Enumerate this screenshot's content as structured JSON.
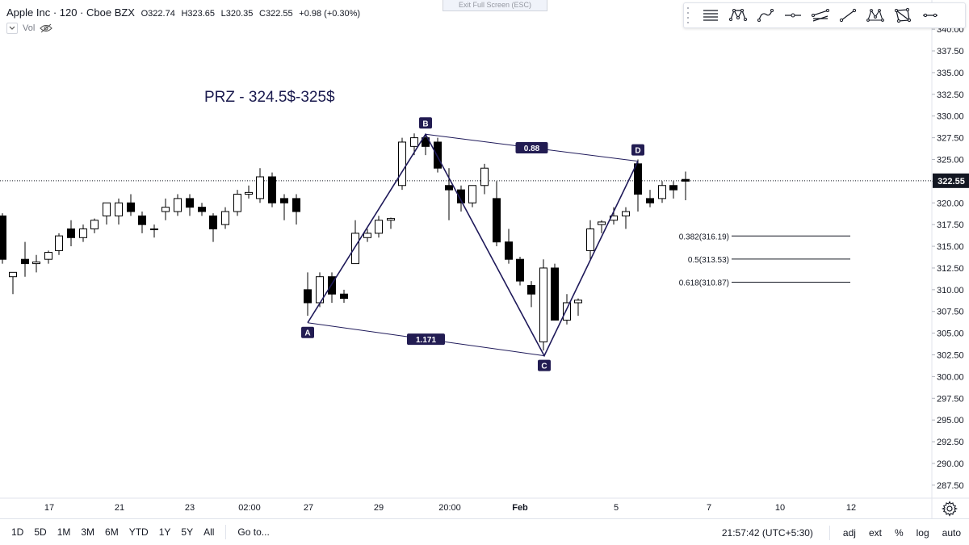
{
  "legend": {
    "symbol": "Apple Inc · 120 · Cboe BZX",
    "open": "O322.74",
    "high": "H323.65",
    "low": "L320.35",
    "close": "C322.55",
    "change": "+0.98 (+0.30%)",
    "vol_label": "Vol"
  },
  "exit_fullscreen": "Exit Full Screen (ESC)",
  "toolbar_icons": [
    "horizontal-lines-icon",
    "xabcd-pattern-icon",
    "curve-icon",
    "horizontal-line-icon",
    "parallel-channel-icon",
    "trend-line-icon",
    "abcd-pattern-icon",
    "polygon-icon",
    "horizontal-ray-icon"
  ],
  "annotation": "PRZ - 324.5$-325$",
  "last_price": "322.55",
  "colors": {
    "up": "#ffffff",
    "down": "#000000",
    "wick": "#000000",
    "pattern": "#1f1a5a",
    "label_bg": "#221c52"
  },
  "bottom_bar": {
    "ranges": [
      "1D",
      "5D",
      "1M",
      "3M",
      "6M",
      "YTD",
      "1Y",
      "5Y",
      "All"
    ],
    "goto": "Go to...",
    "time": "21:57:42 (UTC+5:30)",
    "options": [
      "adj",
      "ext",
      "%",
      "log",
      "auto"
    ]
  },
  "chart_data": {
    "type": "candlestick",
    "title": "",
    "ylim": [
      286.0,
      341.5
    ],
    "y_ticks": [
      "340.00",
      "337.50",
      "335.00",
      "332.50",
      "330.00",
      "327.50",
      "325.00",
      "322.50",
      "320.00",
      "317.50",
      "315.00",
      "312.50",
      "310.00",
      "307.50",
      "305.00",
      "302.50",
      "300.00",
      "297.50",
      "295.00",
      "292.50",
      "290.00",
      "287.50"
    ],
    "x_ticks": [
      "17",
      "21",
      "23",
      "02:00",
      "27",
      "29",
      "20:00",
      "Feb",
      "5",
      "7",
      "10",
      "12"
    ],
    "x_tick_bold": [
      false,
      false,
      false,
      false,
      false,
      false,
      false,
      true,
      false,
      false,
      false,
      false
    ],
    "candles": [
      {
        "o": 318.5,
        "h": 318.8,
        "l": 313.0,
        "c": 313.5
      },
      {
        "o": 311.5,
        "h": 312.0,
        "l": 309.5,
        "c": 312.0
      },
      {
        "o": 313.5,
        "h": 315.5,
        "l": 311.5,
        "c": 313.0
      },
      {
        "o": 313.0,
        "h": 314.0,
        "l": 312.0,
        "c": 313.2
      },
      {
        "o": 313.5,
        "h": 314.5,
        "l": 313.0,
        "c": 314.3
      },
      {
        "o": 314.5,
        "h": 316.5,
        "l": 314.0,
        "c": 316.2
      },
      {
        "o": 317.0,
        "h": 318.0,
        "l": 315.0,
        "c": 316.0
      },
      {
        "o": 316.0,
        "h": 317.5,
        "l": 315.5,
        "c": 317.0
      },
      {
        "o": 317.0,
        "h": 318.2,
        "l": 316.5,
        "c": 318.0
      },
      {
        "o": 318.5,
        "h": 320.0,
        "l": 317.5,
        "c": 320.0
      },
      {
        "o": 318.5,
        "h": 320.5,
        "l": 317.5,
        "c": 320.0
      },
      {
        "o": 320.0,
        "h": 321.0,
        "l": 318.5,
        "c": 319.0
      },
      {
        "o": 318.5,
        "h": 319.0,
        "l": 316.5,
        "c": 317.5
      },
      {
        "o": 317.0,
        "h": 317.5,
        "l": 316.0,
        "c": 317.0
      },
      {
        "o": 319.0,
        "h": 320.5,
        "l": 318.0,
        "c": 319.5
      },
      {
        "o": 319.0,
        "h": 321.0,
        "l": 318.5,
        "c": 320.5
      },
      {
        "o": 320.5,
        "h": 321.0,
        "l": 318.5,
        "c": 319.5
      },
      {
        "o": 319.5,
        "h": 320.0,
        "l": 318.5,
        "c": 319.0
      },
      {
        "o": 318.5,
        "h": 318.8,
        "l": 315.5,
        "c": 317.0
      },
      {
        "o": 317.5,
        "h": 319.5,
        "l": 317.0,
        "c": 319.0
      },
      {
        "o": 319.0,
        "h": 321.5,
        "l": 318.5,
        "c": 321.0
      },
      {
        "o": 321.0,
        "h": 322.0,
        "l": 320.5,
        "c": 321.2
      },
      {
        "o": 320.5,
        "h": 324.0,
        "l": 320.0,
        "c": 323.0
      },
      {
        "o": 323.0,
        "h": 323.5,
        "l": 319.5,
        "c": 320.0
      },
      {
        "o": 320.5,
        "h": 321.0,
        "l": 318.0,
        "c": 320.0
      },
      {
        "o": 320.5,
        "h": 321.0,
        "l": 317.5,
        "c": 319.0
      },
      {
        "o": 310.0,
        "h": 312.0,
        "l": 307.0,
        "c": 308.5
      },
      {
        "o": 308.5,
        "h": 312.0,
        "l": 308.0,
        "c": 311.5
      },
      {
        "o": 311.5,
        "h": 312.0,
        "l": 308.5,
        "c": 309.5
      },
      {
        "o": 309.5,
        "h": 310.0,
        "l": 308.5,
        "c": 309.0
      },
      {
        "o": 313.0,
        "h": 318.0,
        "l": 313.0,
        "c": 316.5
      },
      {
        "o": 316.0,
        "h": 317.0,
        "l": 315.5,
        "c": 316.5
      },
      {
        "o": 316.5,
        "h": 318.5,
        "l": 316.0,
        "c": 318.0
      },
      {
        "o": 318.0,
        "h": 318.3,
        "l": 317.0,
        "c": 318.2
      },
      {
        "o": 322.0,
        "h": 327.5,
        "l": 321.5,
        "c": 327.0
      },
      {
        "o": 326.5,
        "h": 328.0,
        "l": 325.5,
        "c": 327.5
      },
      {
        "o": 327.5,
        "h": 327.8,
        "l": 325.5,
        "c": 326.5
      },
      {
        "o": 327.0,
        "h": 327.5,
        "l": 323.5,
        "c": 324.0
      },
      {
        "o": 322.0,
        "h": 324.0,
        "l": 318.0,
        "c": 321.5
      },
      {
        "o": 321.5,
        "h": 322.0,
        "l": 319.0,
        "c": 320.0
      },
      {
        "o": 320.0,
        "h": 322.0,
        "l": 319.5,
        "c": 322.0
      },
      {
        "o": 322.0,
        "h": 324.5,
        "l": 321.0,
        "c": 324.0
      },
      {
        "o": 320.5,
        "h": 322.5,
        "l": 315.0,
        "c": 315.5
      },
      {
        "o": 315.5,
        "h": 317.0,
        "l": 313.0,
        "c": 313.5
      },
      {
        "o": 313.5,
        "h": 313.8,
        "l": 310.5,
        "c": 311.0
      },
      {
        "o": 310.5,
        "h": 311.0,
        "l": 308.0,
        "c": 309.5
      },
      {
        "o": 304.0,
        "h": 313.5,
        "l": 303.0,
        "c": 312.5
      },
      {
        "o": 312.5,
        "h": 313.0,
        "l": 306.5,
        "c": 306.5
      },
      {
        "o": 306.5,
        "h": 309.5,
        "l": 306.0,
        "c": 308.5
      },
      {
        "o": 308.5,
        "h": 309.0,
        "l": 307.0,
        "c": 308.8
      },
      {
        "o": 314.5,
        "h": 318.0,
        "l": 313.5,
        "c": 317.0
      },
      {
        "o": 317.5,
        "h": 318.0,
        "l": 316.5,
        "c": 317.8
      },
      {
        "o": 318.0,
        "h": 319.5,
        "l": 317.5,
        "c": 318.5
      },
      {
        "o": 318.5,
        "h": 319.5,
        "l": 317.0,
        "c": 319.0
      },
      {
        "o": 324.5,
        "h": 325.0,
        "l": 319.0,
        "c": 321.0
      },
      {
        "o": 320.5,
        "h": 321.5,
        "l": 319.5,
        "c": 320.0
      },
      {
        "o": 320.5,
        "h": 322.5,
        "l": 320.0,
        "c": 322.0
      },
      {
        "o": 322.0,
        "h": 322.5,
        "l": 320.5,
        "c": 321.5
      },
      {
        "o": 322.7,
        "h": 323.6,
        "l": 320.3,
        "c": 322.5
      }
    ],
    "xabcd": {
      "points": [
        {
          "label": "A",
          "price": 306.2
        },
        {
          "label": "B",
          "price": 327.9
        },
        {
          "label": "C",
          "price": 302.4
        },
        {
          "label": "D",
          "price": 324.8
        }
      ],
      "ratios": [
        {
          "from": "B",
          "to": "D",
          "label": "0.88"
        },
        {
          "from": "A",
          "to": "C",
          "label": "1.171"
        }
      ]
    },
    "fib_levels": [
      {
        "label": "0.382(316.19)",
        "price": 316.19
      },
      {
        "label": "0.5(313.53)",
        "price": 313.53
      },
      {
        "label": "0.618(310.87)",
        "price": 310.87
      }
    ]
  }
}
